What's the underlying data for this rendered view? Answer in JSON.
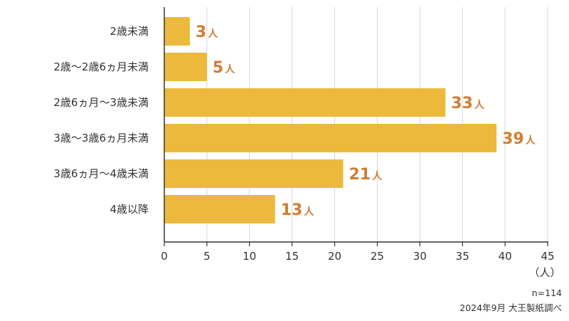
{
  "chart_data": {
    "type": "bar",
    "orientation": "horizontal",
    "categories": [
      "2歳未満",
      "2歳～2歳6ヵ月未満",
      "2歳6ヵ月～3歳未満",
      "3歳～3歳6ヵ月未満",
      "3歳6ヵ月～4歳未満",
      "4歳以降"
    ],
    "values": [
      3,
      5,
      33,
      39,
      21,
      13
    ],
    "value_suffix": "人",
    "xlim": [
      0,
      45
    ],
    "xticks": [
      0,
      5,
      10,
      15,
      20,
      25,
      30,
      35,
      40,
      45
    ],
    "x_unit_label": "（人）",
    "grid": "vertical",
    "colors": {
      "bar": "#edb93c",
      "value_label": "#d27d32",
      "grid": "#d6d6d6",
      "axis": "#333333"
    }
  },
  "notes": {
    "sample_size": "n=114",
    "source": "2024年9月 大王製紙調べ"
  }
}
